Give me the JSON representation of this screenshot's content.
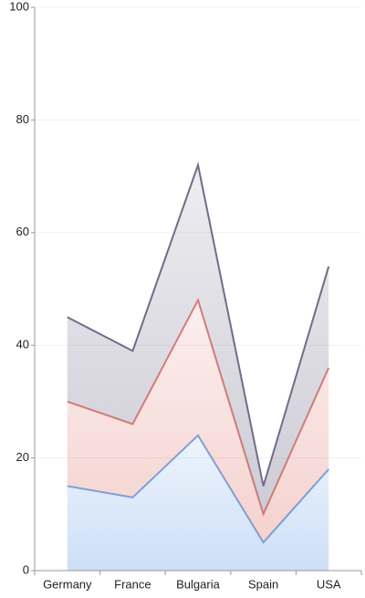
{
  "chart_data": {
    "type": "stacked-area",
    "categories": [
      "Germany",
      "France",
      "Bulgaria",
      "Spain",
      "USA"
    ],
    "series": [
      {
        "color": "#6fa4e6",
        "values": [
          15,
          13,
          24,
          5,
          18
        ]
      },
      {
        "color": "#e07e76",
        "values": [
          15,
          13,
          24,
          5,
          18
        ]
      },
      {
        "color": "#716c88",
        "values": [
          15,
          13,
          24,
          5,
          18
        ]
      }
    ],
    "ylim": [
      0,
      100
    ],
    "yticks": [
      0,
      20,
      40,
      60,
      80,
      100
    ],
    "grid": true
  }
}
